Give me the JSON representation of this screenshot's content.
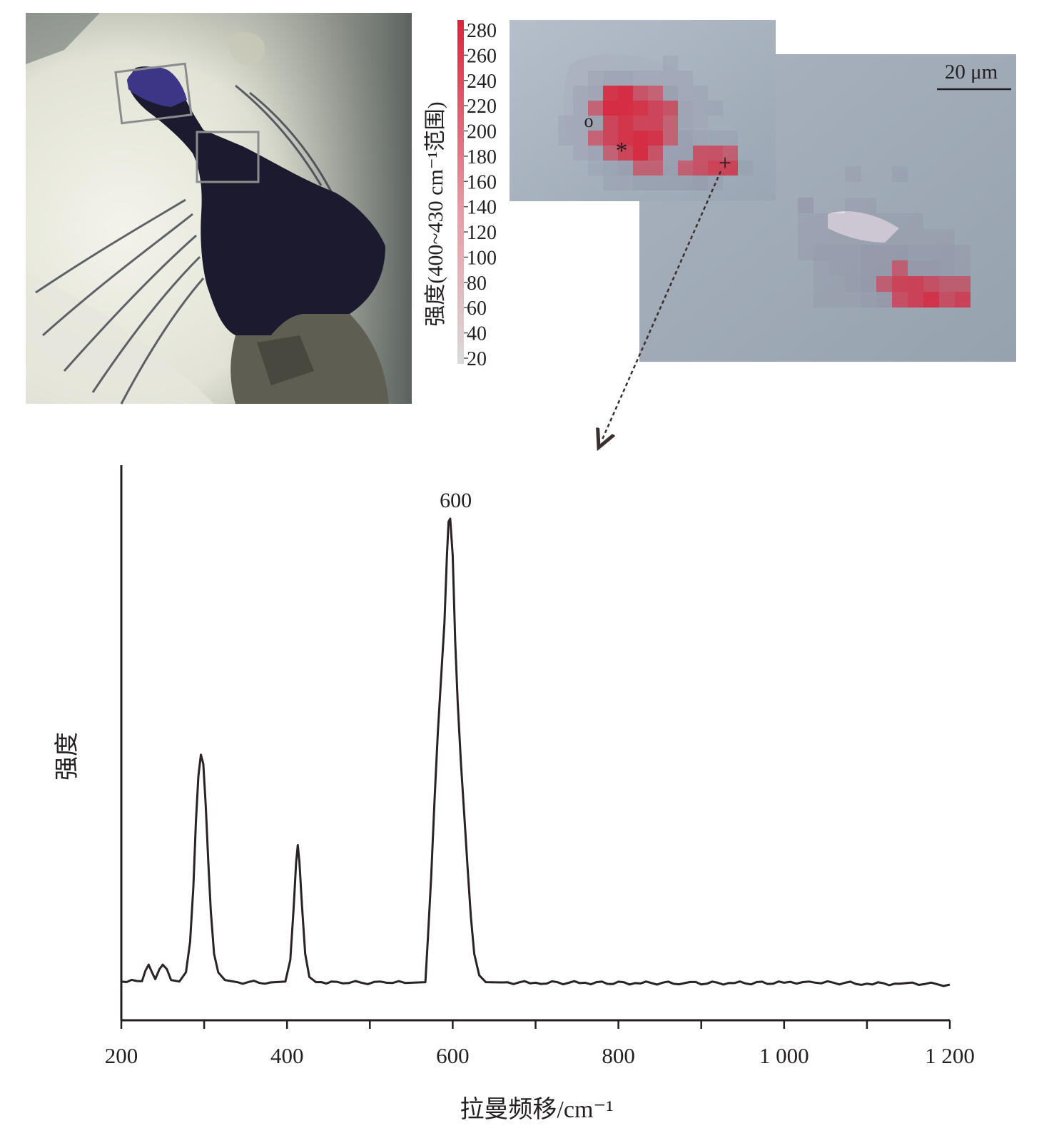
{
  "micrograph": {
    "description_icon": "crystal-micrograph-image"
  },
  "colorbar": {
    "label": "强度(400~430 cm⁻¹范围)",
    "ticks": [
      "280",
      "260",
      "240",
      "220",
      "200",
      "180",
      "160",
      "140",
      "120",
      "100",
      "80",
      "60",
      "40",
      "20"
    ],
    "min_value": 20,
    "max_value": 280,
    "colors": {
      "high": "#d7263d",
      "low": "#d9d9d9"
    }
  },
  "raman_map": {
    "scale_bar_label": "20 μm",
    "markers": {
      "circle": "o",
      "star": "*",
      "plus": "+"
    }
  },
  "chart_data": {
    "type": "line",
    "title": "",
    "xlabel": "拉曼频移/cm⁻¹",
    "ylabel": "强度",
    "xlim": [
      200,
      1200
    ],
    "x_tick_labels": [
      "200",
      "400",
      "600",
      "800",
      "1 000",
      "1 200"
    ],
    "x_tick_values": [
      200,
      400,
      600,
      800,
      1000,
      1200
    ],
    "y_ticks": "none",
    "grid": false,
    "annotations": [
      {
        "text": "600",
        "x": 595
      }
    ],
    "series": [
      {
        "x": [
          200,
          225,
          229,
          233,
          237,
          241,
          246,
          250,
          255,
          260,
          270,
          278,
          283,
          287,
          290,
          293,
          296,
          299,
          302,
          305,
          308,
          312,
          317,
          325,
          340,
          380,
          398,
          404,
          408,
          411,
          413,
          415,
          418,
          422,
          427,
          435,
          460,
          490,
          520,
          550,
          567,
          570,
          574,
          578,
          582,
          586,
          590,
          593,
          595,
          597,
          600,
          603,
          606,
          610,
          614,
          618,
          622,
          626,
          632,
          640,
          660,
          700,
          760,
          820,
          880,
          940,
          1000,
          1030,
          1060,
          1100,
          1140,
          1170,
          1200
        ],
        "y": [
          1.0,
          1.1,
          4.5,
          6.5,
          4.0,
          1.8,
          5.0,
          6.5,
          5.0,
          1.5,
          1.0,
          4.0,
          14.0,
          32.0,
          53.0,
          68.0,
          75.0,
          72.0,
          58.0,
          40.0,
          24.0,
          10.0,
          4.0,
          1.5,
          0.8,
          0.7,
          1.0,
          8.0,
          25.0,
          40.0,
          45.5,
          40.0,
          26.0,
          10.0,
          2.5,
          0.8,
          0.9,
          0.6,
          0.6,
          0.6,
          0.8,
          15.0,
          35.0,
          60.0,
          82.0,
          100.0,
          118.0,
          140.0,
          151.0,
          152.0,
          140.0,
          112.0,
          92.0,
          72.0,
          55.0,
          38.0,
          22.0,
          10.0,
          3.0,
          0.8,
          0.7,
          0.6,
          0.6,
          0.5,
          0.5,
          0.5,
          0.6,
          1.0,
          0.6,
          0.3,
          0.3,
          0.2,
          0.0
        ]
      }
    ]
  }
}
